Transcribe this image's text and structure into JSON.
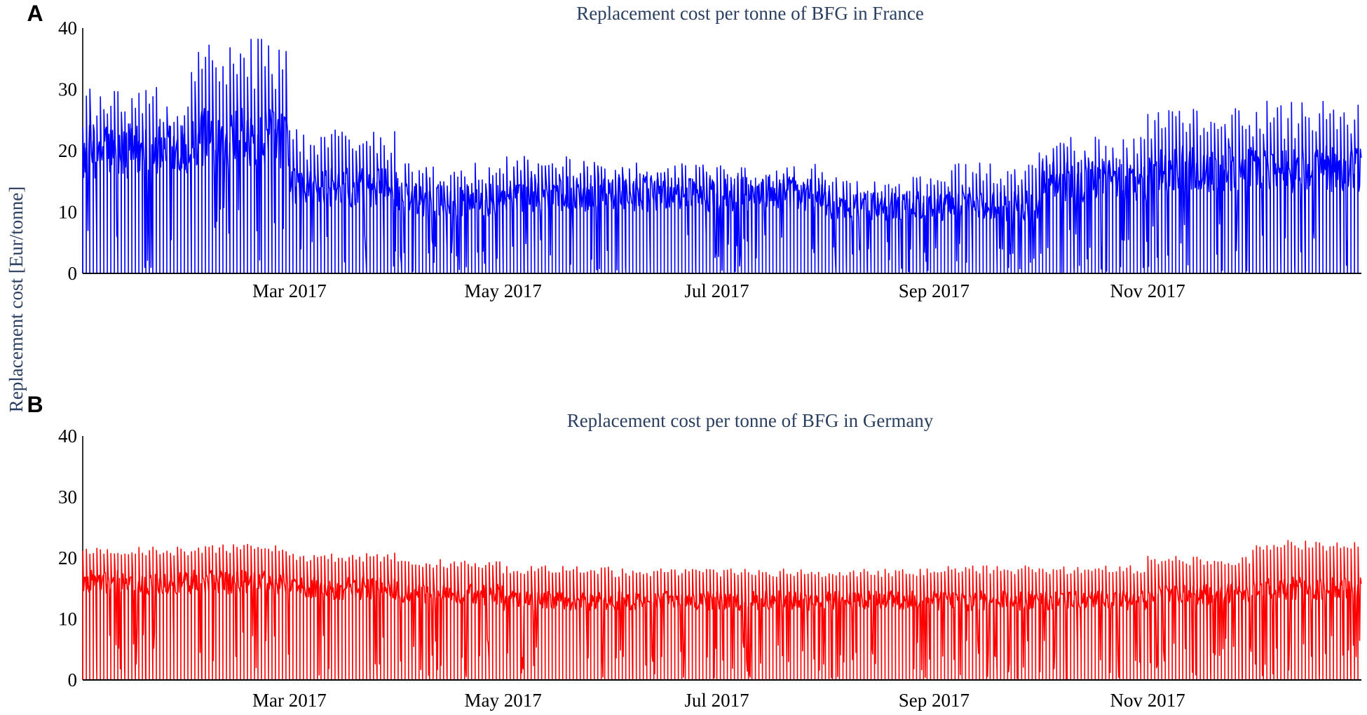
{
  "figure": {
    "y_axis_label": "Replacement cost [Eur/tonne]"
  },
  "chart_data": [
    {
      "type": "line",
      "panel_label": "A",
      "title": "Replacement cost per tonne of BFG in France",
      "color": "#0000ff",
      "x_range": [
        "2017-01-01",
        "2018-01-01"
      ],
      "x_ticks": [
        {
          "date": "2017-03-01",
          "label": "Mar 2017"
        },
        {
          "date": "2017-05-01",
          "label": "May 2017"
        },
        {
          "date": "2017-07-01",
          "label": "Jul 2017"
        },
        {
          "date": "2017-09-01",
          "label": "Sep 2017"
        },
        {
          "date": "2017-11-01",
          "label": "Nov 2017"
        }
      ],
      "y_ticks": [
        0,
        10,
        20,
        30,
        40
      ],
      "ylim": [
        0,
        40
      ],
      "monthly_level": [
        {
          "month": "2017-01",
          "peak": 27,
          "typical": 20
        },
        {
          "month": "2017-02",
          "peak": 34,
          "typical": 22
        },
        {
          "month": "2017-03",
          "peak": 21,
          "typical": 14
        },
        {
          "month": "2017-04",
          "peak": 16,
          "typical": 12
        },
        {
          "month": "2017-05",
          "peak": 17,
          "typical": 13
        },
        {
          "month": "2017-06",
          "peak": 16,
          "typical": 13
        },
        {
          "month": "2017-07",
          "peak": 16,
          "typical": 13
        },
        {
          "month": "2017-08",
          "peak": 14,
          "typical": 11
        },
        {
          "month": "2017-09",
          "peak": 16,
          "typical": 11
        },
        {
          "month": "2017-10",
          "peak": 20,
          "typical": 15
        },
        {
          "month": "2017-11",
          "peak": 24,
          "typical": 17
        },
        {
          "month": "2017-12",
          "peak": 25,
          "typical": 17
        }
      ]
    },
    {
      "type": "line",
      "panel_label": "B",
      "title": "Replacement cost per tonne of BFG in Germany",
      "color": "#ff0000",
      "x_range": [
        "2017-01-01",
        "2018-01-01"
      ],
      "x_ticks": [
        {
          "date": "2017-03-01",
          "label": "Mar 2017"
        },
        {
          "date": "2017-05-01",
          "label": "May 2017"
        },
        {
          "date": "2017-07-01",
          "label": "Jul 2017"
        },
        {
          "date": "2017-09-01",
          "label": "Sep 2017"
        },
        {
          "date": "2017-11-01",
          "label": "Nov 2017"
        }
      ],
      "y_ticks": [
        0,
        10,
        20,
        30,
        40
      ],
      "ylim": [
        0,
        40
      ],
      "monthly_level": [
        {
          "month": "2017-01",
          "peak": 21,
          "typical": 16
        },
        {
          "month": "2017-02",
          "peak": 21.5,
          "typical": 16
        },
        {
          "month": "2017-03",
          "peak": 20,
          "typical": 15
        },
        {
          "month": "2017-04",
          "peak": 19,
          "typical": 14
        },
        {
          "month": "2017-05",
          "peak": 18,
          "typical": 13
        },
        {
          "month": "2017-06",
          "peak": 17.5,
          "typical": 13
        },
        {
          "month": "2017-07",
          "peak": 17.5,
          "typical": 13
        },
        {
          "month": "2017-08",
          "peak": 17.5,
          "typical": 13
        },
        {
          "month": "2017-09",
          "peak": 18,
          "typical": 13
        },
        {
          "month": "2017-10",
          "peak": 18,
          "typical": 13
        },
        {
          "month": "2017-11",
          "peak": 19.5,
          "typical": 14
        },
        {
          "month": "2017-12",
          "peak": 22,
          "typical": 15
        }
      ]
    }
  ]
}
